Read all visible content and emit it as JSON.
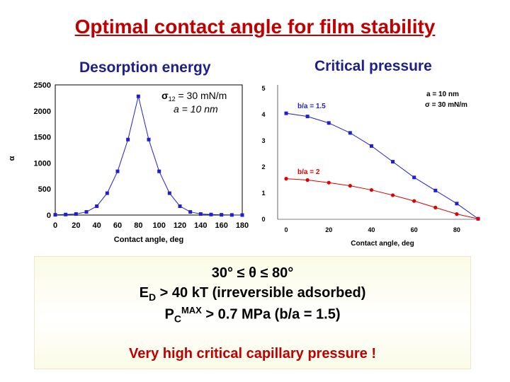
{
  "slide": {
    "title": "Optimal contact angle for film stability",
    "left_heading": "Desorption energy",
    "right_heading": "Critical pressure",
    "summary": {
      "line1": "30° ≤ θ ≤ 80°",
      "line2_symbol": "E",
      "line2_sub": "D",
      "line2_rest": " > 40 kT (irreversible adsorbed)",
      "line3_symbol": "P",
      "line3_sub": "C",
      "line3_sup": "MAX",
      "line3_rest": " > 0.7 MPa (b/a = 1.5)",
      "line4": "Very high critical capillary pressure !"
    }
  },
  "colors": {
    "title": "#c00000",
    "heading": "#1f1f8a",
    "series_blue": "#1f1fd0",
    "series_red": "#e00000"
  },
  "chart_data": [
    {
      "type": "line",
      "title": "Desorption energy",
      "xlabel": "Contact angle, deg",
      "ylabel": "",
      "y_axis_mark": "α",
      "xlim": [
        0,
        180
      ],
      "ylim": [
        0,
        2500
      ],
      "xticks": [
        0,
        20,
        40,
        60,
        80,
        100,
        120,
        140,
        160,
        180
      ],
      "yticks": [
        0,
        500,
        1000,
        1500,
        2000,
        2500
      ],
      "annotation": {
        "line1_symbol": "σ",
        "line1_sub": "12",
        "line1_rest": " = 30 mN/m",
        "line2": "a = 10 nm"
      },
      "series": [
        {
          "x": [
            0,
            10,
            20,
            30,
            40,
            50,
            60,
            70,
            80,
            90,
            100,
            110,
            120,
            130,
            140,
            150,
            160,
            170,
            180
          ],
          "values": [
            5,
            10,
            20,
            60,
            170,
            420,
            840,
            1450,
            2280,
            1450,
            840,
            420,
            170,
            60,
            20,
            10,
            5,
            2,
            0
          ]
        }
      ]
    },
    {
      "type": "line",
      "title": "Critical pressure",
      "xlabel": "Contact angle, deg",
      "ylabel": "",
      "xlim": [
        0,
        90
      ],
      "ylim": [
        0,
        5
      ],
      "xticks": [
        0,
        20,
        40,
        60,
        80
      ],
      "yticks": [
        0,
        1,
        2,
        3,
        4,
        5
      ],
      "annotation": {
        "line1": "a = 10 nm",
        "line2": "σ = 30 mN/m"
      },
      "series": [
        {
          "name": "b/a = 1.5",
          "x": [
            0,
            10,
            20,
            30,
            40,
            50,
            60,
            70,
            80,
            90
          ],
          "values": [
            4.05,
            3.93,
            3.68,
            3.3,
            2.8,
            2.2,
            1.6,
            1.1,
            0.6,
            0.02
          ]
        },
        {
          "name": "b/a = 2",
          "x": [
            0,
            10,
            20,
            30,
            40,
            50,
            60,
            70,
            80,
            90
          ],
          "values": [
            1.55,
            1.5,
            1.4,
            1.28,
            1.12,
            0.92,
            0.7,
            0.45,
            0.2,
            0.02
          ]
        }
      ]
    }
  ]
}
